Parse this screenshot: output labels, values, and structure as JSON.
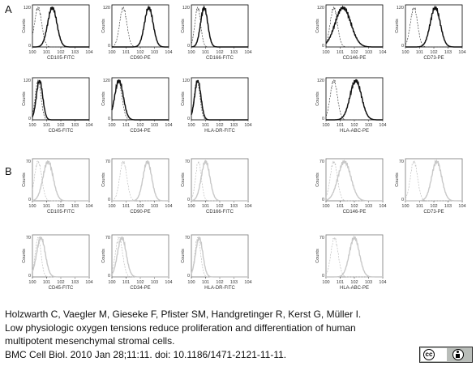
{
  "panel_labels": [
    "A",
    "B"
  ],
  "citation": {
    "line1": "Holzwarth C, Vaegler M, Gieseke F, Pfister SM, Handgretinger R, Kerst G, Müller I.",
    "line2": "Low physiologic oxygen tensions reduce proliferation and differentiation of human",
    "line3": "multipotent mesenchymal stromal cells.",
    "line4": "BMC Cell Biol. 2010 Jan 28;11:11. doi: 10.1186/1471-2121-11-11."
  },
  "license": {
    "cc_icon": "cc-icon",
    "by_icon": "by-icon",
    "text": "BY"
  },
  "colors": {
    "panel_a_sample": "#111111",
    "panel_b_sample": "#c8c8c8",
    "isotype_a": "#444444",
    "isotype_b": "#c0c0c0"
  },
  "chart_data": [
    {
      "type": "area",
      "panel": "A",
      "xlabel": "CD105-FITC",
      "ylabel": "Counts",
      "ymax": 120,
      "x_ticks": [
        "10^0",
        "10^1",
        "10^2",
        "10^3",
        "10^4"
      ],
      "x_scale": "log",
      "series": [
        {
          "role": "isotype",
          "style": "dashed",
          "peak_log": 0.4,
          "width": 0.25
        },
        {
          "role": "sample",
          "style": "solid",
          "peak_log": 1.4,
          "width": 0.32
        }
      ]
    },
    {
      "type": "area",
      "panel": "A",
      "xlabel": "CD90-PE",
      "ylabel": "Counts",
      "ymax": 120,
      "x_ticks": [
        "10^0",
        "10^1",
        "10^2",
        "10^3",
        "10^4"
      ],
      "x_scale": "log",
      "series": [
        {
          "role": "isotype",
          "style": "dashed",
          "peak_log": 0.8,
          "width": 0.25
        },
        {
          "role": "sample",
          "style": "solid",
          "peak_log": 2.6,
          "width": 0.3
        }
      ]
    },
    {
      "type": "area",
      "panel": "A",
      "xlabel": "CD166-FITC",
      "ylabel": "Counts",
      "ymax": 120,
      "x_ticks": [
        "10^0",
        "10^1",
        "10^2",
        "10^3",
        "10^4"
      ],
      "x_scale": "log",
      "series": [
        {
          "role": "isotype",
          "style": "dashed",
          "peak_log": 0.45,
          "width": 0.2
        },
        {
          "role": "sample",
          "style": "solid",
          "peak_log": 0.9,
          "width": 0.25
        }
      ]
    },
    {
      "type": "area",
      "panel": "A",
      "xlabel": "CD146-PE",
      "ylabel": "Counts",
      "ymax": 120,
      "x_ticks": [
        "10^0",
        "10^1",
        "10^2",
        "10^3",
        "10^4"
      ],
      "x_scale": "log",
      "series": [
        {
          "role": "isotype",
          "style": "dashed",
          "peak_log": 0.55,
          "width": 0.25
        },
        {
          "role": "sample",
          "style": "solid",
          "peak_log": 1.2,
          "width": 0.55
        }
      ]
    },
    {
      "type": "area",
      "panel": "A",
      "xlabel": "CD73-PE",
      "ylabel": "Counts",
      "ymax": 120,
      "x_ticks": [
        "10^0",
        "10^1",
        "10^2",
        "10^3",
        "10^4"
      ],
      "x_scale": "log",
      "series": [
        {
          "role": "isotype",
          "style": "dashed",
          "peak_log": 0.6,
          "width": 0.25
        },
        {
          "role": "sample",
          "style": "solid",
          "peak_log": 2.1,
          "width": 0.35
        }
      ]
    },
    {
      "type": "area",
      "panel": "A",
      "xlabel": "CD45-FITC",
      "ylabel": "Counts",
      "ymax": 120,
      "x_ticks": [
        "10^0",
        "10^1",
        "10^2",
        "10^3",
        "10^4"
      ],
      "x_scale": "log",
      "series": [
        {
          "role": "isotype",
          "style": "dashed",
          "peak_log": 0.4,
          "width": 0.2
        },
        {
          "role": "sample",
          "style": "solid",
          "peak_log": 0.5,
          "width": 0.22
        }
      ]
    },
    {
      "type": "area",
      "panel": "A",
      "xlabel": "CD34-PE",
      "ylabel": "Counts",
      "ymax": 120,
      "x_ticks": [
        "10^0",
        "10^1",
        "10^2",
        "10^3",
        "10^4"
      ],
      "x_scale": "log",
      "series": [
        {
          "role": "isotype",
          "style": "dashed",
          "peak_log": 0.45,
          "width": 0.25
        },
        {
          "role": "sample",
          "style": "solid",
          "peak_log": 0.5,
          "width": 0.3
        }
      ]
    },
    {
      "type": "area",
      "panel": "A",
      "xlabel": "HLA-DR-FITC",
      "ylabel": "Counts",
      "ymax": 120,
      "x_ticks": [
        "10^0",
        "10^1",
        "10^2",
        "10^3",
        "10^4"
      ],
      "x_scale": "log",
      "series": [
        {
          "role": "isotype",
          "style": "dashed",
          "peak_log": 0.4,
          "width": 0.2
        },
        {
          "role": "sample",
          "style": "solid",
          "peak_log": 0.45,
          "width": 0.22
        }
      ]
    },
    {
      "type": "area",
      "panel": "A",
      "xlabel": "HLA-ABC-PE",
      "ylabel": "Counts",
      "ymax": 120,
      "x_ticks": [
        "10^0",
        "10^1",
        "10^2",
        "10^3",
        "10^4"
      ],
      "x_scale": "log",
      "series": [
        {
          "role": "isotype",
          "style": "dashed",
          "peak_log": 0.55,
          "width": 0.25
        },
        {
          "role": "sample",
          "style": "solid",
          "peak_log": 2.1,
          "width": 0.4
        }
      ]
    },
    {
      "type": "area",
      "panel": "B",
      "xlabel": "CD105-FITC",
      "ylabel": "Counts",
      "ymax": 70,
      "x_ticks": [
        "10^0",
        "10^1",
        "10^2",
        "10^3",
        "10^4"
      ],
      "x_scale": "log",
      "series": [
        {
          "role": "isotype",
          "style": "dashed",
          "peak_log": 0.4,
          "width": 0.25
        },
        {
          "role": "sample",
          "style": "solid",
          "peak_log": 1.1,
          "width": 0.35
        }
      ]
    },
    {
      "type": "area",
      "panel": "B",
      "xlabel": "CD90-PE",
      "ylabel": "Counts",
      "ymax": 70,
      "x_ticks": [
        "10^0",
        "10^1",
        "10^2",
        "10^3",
        "10^4"
      ],
      "x_scale": "log",
      "series": [
        {
          "role": "isotype",
          "style": "dashed",
          "peak_log": 0.8,
          "width": 0.25
        },
        {
          "role": "sample",
          "style": "solid",
          "peak_log": 2.5,
          "width": 0.3
        }
      ]
    },
    {
      "type": "area",
      "panel": "B",
      "xlabel": "CD166-FITC",
      "ylabel": "Counts",
      "ymax": 70,
      "x_ticks": [
        "10^0",
        "10^1",
        "10^2",
        "10^3",
        "10^4"
      ],
      "x_scale": "log",
      "series": [
        {
          "role": "isotype",
          "style": "dashed",
          "peak_log": 0.5,
          "width": 0.2
        },
        {
          "role": "sample",
          "style": "solid",
          "peak_log": 1.0,
          "width": 0.3
        }
      ]
    },
    {
      "type": "area",
      "panel": "B",
      "xlabel": "CD146-PE",
      "ylabel": "Counts",
      "ymax": 70,
      "x_ticks": [
        "10^0",
        "10^1",
        "10^2",
        "10^3",
        "10^4"
      ],
      "x_scale": "log",
      "series": [
        {
          "role": "isotype",
          "style": "dashed",
          "peak_log": 0.55,
          "width": 0.25
        },
        {
          "role": "sample",
          "style": "solid",
          "peak_log": 1.3,
          "width": 0.45
        }
      ]
    },
    {
      "type": "area",
      "panel": "B",
      "xlabel": "CD73-PE",
      "ylabel": "Counts",
      "ymax": 70,
      "x_ticks": [
        "10^0",
        "10^1",
        "10^2",
        "10^3",
        "10^4"
      ],
      "x_scale": "log",
      "series": [
        {
          "role": "isotype",
          "style": "dashed",
          "peak_log": 0.6,
          "width": 0.25
        },
        {
          "role": "sample",
          "style": "solid",
          "peak_log": 2.2,
          "width": 0.35
        }
      ]
    },
    {
      "type": "area",
      "panel": "B",
      "xlabel": "CD45-FITC",
      "ylabel": "Counts",
      "ymax": 70,
      "x_ticks": [
        "10^0",
        "10^1",
        "10^2",
        "10^3",
        "10^4"
      ],
      "x_scale": "log",
      "series": [
        {
          "role": "isotype",
          "style": "dashed",
          "peak_log": 0.4,
          "width": 0.2
        },
        {
          "role": "sample",
          "style": "solid",
          "peak_log": 0.6,
          "width": 0.3
        }
      ]
    },
    {
      "type": "area",
      "panel": "B",
      "xlabel": "CD34-PE",
      "ylabel": "Counts",
      "ymax": 70,
      "x_ticks": [
        "10^0",
        "10^1",
        "10^2",
        "10^3",
        "10^4"
      ],
      "x_scale": "log",
      "series": [
        {
          "role": "isotype",
          "style": "dashed",
          "peak_log": 0.5,
          "width": 0.25
        },
        {
          "role": "sample",
          "style": "solid",
          "peak_log": 0.7,
          "width": 0.3
        }
      ]
    },
    {
      "type": "area",
      "panel": "B",
      "xlabel": "HLA-DR-FITC",
      "ylabel": "Counts",
      "ymax": 70,
      "x_ticks": [
        "10^0",
        "10^1",
        "10^2",
        "10^3",
        "10^4"
      ],
      "x_scale": "log",
      "series": [
        {
          "role": "isotype",
          "style": "dashed",
          "peak_log": 0.45,
          "width": 0.2
        },
        {
          "role": "sample",
          "style": "solid",
          "peak_log": 0.55,
          "width": 0.25
        }
      ]
    },
    {
      "type": "area",
      "panel": "B",
      "xlabel": "HLA-ABC-PE",
      "ylabel": "Counts",
      "ymax": 70,
      "x_ticks": [
        "10^0",
        "10^1",
        "10^2",
        "10^3",
        "10^4"
      ],
      "x_scale": "log",
      "series": [
        {
          "role": "isotype",
          "style": "dashed",
          "peak_log": 0.6,
          "width": 0.25
        },
        {
          "role": "sample",
          "style": "solid",
          "peak_log": 2.0,
          "width": 0.35
        }
      ]
    }
  ]
}
